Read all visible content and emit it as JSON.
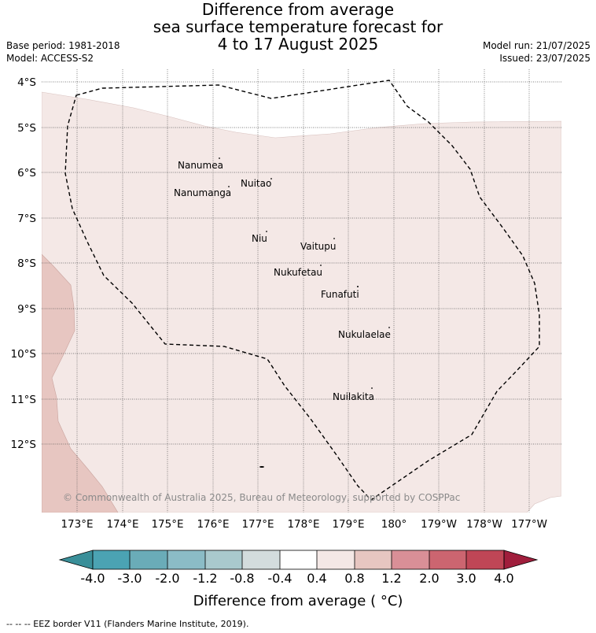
{
  "title": {
    "line1": "Difference from average",
    "line2": "sea surface temperature forecast for",
    "line3": "4 to 17 August 2025"
  },
  "left_meta": {
    "base_period": "Base period: 1981-2018",
    "model": "Model: ACCESS-S2"
  },
  "right_meta": {
    "model_run": "Model run: 21/07/2025",
    "issued": "Issued: 23/07/2025"
  },
  "map": {
    "lat_labels": [
      "4°S",
      "5°S",
      "6°S",
      "7°S",
      "8°S",
      "9°S",
      "10°S",
      "11°S",
      "12°S"
    ],
    "lon_labels": [
      "173°E",
      "174°E",
      "175°E",
      "176°E",
      "177°E",
      "178°E",
      "179°E",
      "180°",
      "179°W",
      "178°W",
      "177°W"
    ],
    "islands": [
      "Nanumea",
      "Nuitao",
      "Nanumanga",
      "Niu",
      "Vaitupu",
      "Nukufetau",
      "Funafuti",
      "Nukulaelae",
      "Nuilakita"
    ],
    "copyright": "© Commonwealth of Australia 2025, Bureau of Meteorology, supported by COSPPac",
    "colors": {
      "anomaly_0_4_to_0_8": "#f4e8e6",
      "anomaly_0_8_to_1_2": "#e7c6c1",
      "ocean_no_anomaly": "#ffffff",
      "eez_border": "#000000"
    }
  },
  "colorbar": {
    "ticks": [
      "-4.0",
      "-3.0",
      "-2.0",
      "-1.2",
      "-0.8",
      "-0.4",
      "0.4",
      "0.8",
      "1.2",
      "2.0",
      "3.0",
      "4.0"
    ],
    "colors": [
      "#3a8f99",
      "#4ba3b3",
      "#6aacb8",
      "#8bbcc6",
      "#a9c9cd",
      "#d3dcdd",
      "#ffffff",
      "#f4e8e6",
      "#e7c6c1",
      "#d98f97",
      "#cc6570",
      "#bf4656",
      "#a01e3c"
    ],
    "label": "Difference from average ( °C)"
  },
  "footnote": "--  --  -- EEZ border V11 (Flanders Marine Institute, 2019)."
}
